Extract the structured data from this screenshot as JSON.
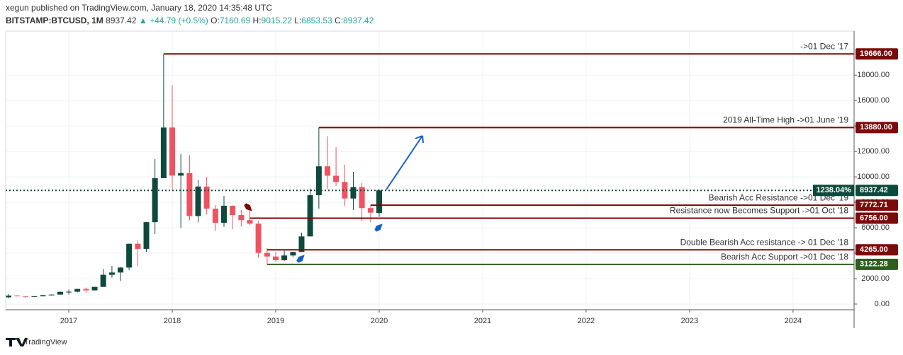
{
  "chart_data": {
    "type": "candlestick",
    "title": "xegun published on TradingView.com, January 18, 2020 14:35:48 UTC",
    "symbol": "BITSTAMP:BTCUSD, 1M",
    "last": "8937.42",
    "change": "▲ +44.79 (+0.5%)",
    "ohlc_header": [
      {
        "key": "O:",
        "value": "7160.69"
      },
      {
        "key": "H:",
        "value": "9015.22"
      },
      {
        "key": "L:",
        "value": "6853.53"
      },
      {
        "key": "C:",
        "value": "8937.42"
      }
    ],
    "footer": "TradingView",
    "up_color": "#0e4a3c",
    "down_color": "#ef5360",
    "grid": true,
    "xlim": [
      2016.39,
      2024.59
    ],
    "xticks": [
      {
        "value": 2017,
        "label": "2017"
      },
      {
        "value": 2018,
        "label": "2018"
      },
      {
        "value": 2019,
        "label": "2019"
      },
      {
        "value": 2020,
        "label": "2020"
      },
      {
        "value": 2021,
        "label": "2021"
      },
      {
        "value": 2022,
        "label": "2022"
      },
      {
        "value": 2023,
        "label": "2023"
      },
      {
        "value": 2024,
        "label": "2024"
      }
    ],
    "ylim": [
      -446,
      21460
    ],
    "yticks": [
      {
        "value": 0,
        "label": "0.00"
      },
      {
        "value": 2000,
        "label": "2000.00"
      },
      {
        "value": 4000,
        "label": "4000.00"
      },
      {
        "value": 6000,
        "label": "6000.00"
      },
      {
        "value": 8000,
        "label": "8000.00"
      },
      {
        "value": 10000,
        "label": "10000.00"
      },
      {
        "value": 12000,
        "label": "12000.00"
      },
      {
        "value": 14000,
        "label": "14000.00"
      },
      {
        "value": 16000,
        "label": "16000.00"
      },
      {
        "value": 18000,
        "label": "18000.00"
      }
    ],
    "candles": {
      "x": [
        2016.417,
        2016.5,
        2016.583,
        2016.667,
        2016.75,
        2016.833,
        2016.917,
        2017.0,
        2017.083,
        2017.167,
        2017.25,
        2017.333,
        2017.417,
        2017.5,
        2017.583,
        2017.667,
        2017.75,
        2017.833,
        2017.917,
        2018.0,
        2018.083,
        2018.167,
        2018.25,
        2018.333,
        2018.417,
        2018.5,
        2018.583,
        2018.667,
        2018.75,
        2018.833,
        2018.917,
        2019.0,
        2019.083,
        2019.167,
        2019.25,
        2019.333,
        2019.417,
        2019.5,
        2019.583,
        2019.667,
        2019.75,
        2019.833,
        2019.917,
        2020.0
      ],
      "open": [
        530,
        670,
        624,
        575,
        609,
        700,
        742,
        963,
        970,
        1190,
        1080,
        1350,
        2300,
        2480,
        2870,
        4740,
        4340,
        6440,
        9900,
        13880,
        10100,
        10300,
        6920,
        9240,
        7500,
        6390,
        7730,
        7000,
        6600,
        6320,
        4020,
        3740,
        3450,
        3820,
        4100,
        5320,
        8560,
        10830,
        10090,
        9600,
        8300,
        9200,
        7550,
        7160.69
      ],
      "high": [
        780,
        700,
        630,
        630,
        720,
        760,
        980,
        1150,
        1210,
        1300,
        1350,
        2760,
        3000,
        2920,
        4750,
        5000,
        6470,
        11400,
        19666,
        17200,
        11800,
        11700,
        9770,
        10000,
        7770,
        8500,
        7760,
        7400,
        7680,
        6550,
        4400,
        4100,
        4200,
        4100,
        5600,
        9080,
        13880,
        13200,
        12340,
        10960,
        10400,
        9530,
        7750,
        9015.22
      ],
      "low": [
        460,
        600,
        480,
        570,
        600,
        690,
        740,
        750,
        920,
        890,
        1060,
        1350,
        2080,
        1830,
        2670,
        2970,
        4100,
        5500,
        9900,
        9000,
        6000,
        6600,
        6430,
        7050,
        5750,
        6070,
        5880,
        6100,
        6200,
        3650,
        3122,
        3340,
        3400,
        3690,
        4100,
        5320,
        7500,
        9060,
        9300,
        7720,
        7400,
        6500,
        6430,
        6853.53
      ],
      "close": [
        670,
        624,
        575,
        609,
        700,
        742,
        963,
        970,
        1190,
        1080,
        1350,
        2300,
        2480,
        2870,
        4740,
        4340,
        6440,
        9900,
        13880,
        10100,
        10300,
        6920,
        9240,
        7500,
        6390,
        7730,
        7000,
        6600,
        6320,
        4020,
        3740,
        3450,
        3820,
        4100,
        5320,
        8560,
        10830,
        10090,
        9600,
        8300,
        9200,
        7550,
        7190,
        8937.42
      ]
    },
    "last_price": {
      "value": 8937.42,
      "label": "8937.42",
      "change_label": "1238.04%"
    },
    "levels": [
      {
        "value": 19666,
        "label": "19666.00",
        "start": 2017.917,
        "text": "->01 Dec '17",
        "color": "#7b0a0a"
      },
      {
        "value": 13880,
        "label": "13880.00",
        "start": 2019.417,
        "text": "2019 All-Time High ->01 June '19",
        "color": "#7b0a0a"
      },
      {
        "value": 7772.71,
        "label": "7772.71",
        "start": 2019.917,
        "text": "Bearish Acc Resistance ->01 Dec '19",
        "color": "#7b0a0a"
      },
      {
        "value": 6756,
        "label": "6756.00",
        "start": 2018.75,
        "text": "Resistance now Becomes Support ->01 Oct '18",
        "color": "#7b0a0a"
      },
      {
        "value": 4265,
        "label": "4265.00",
        "start": 2018.917,
        "text": "Double Bearish Acc resistance -> 01 Dec '18",
        "color": "#7b0a0a"
      },
      {
        "value": 3122.28,
        "label": "3122.28",
        "start": 2018.917,
        "text": "Bearish Acc Support ->01 Dec '18",
        "color": "#2d5e1e"
      }
    ]
  }
}
